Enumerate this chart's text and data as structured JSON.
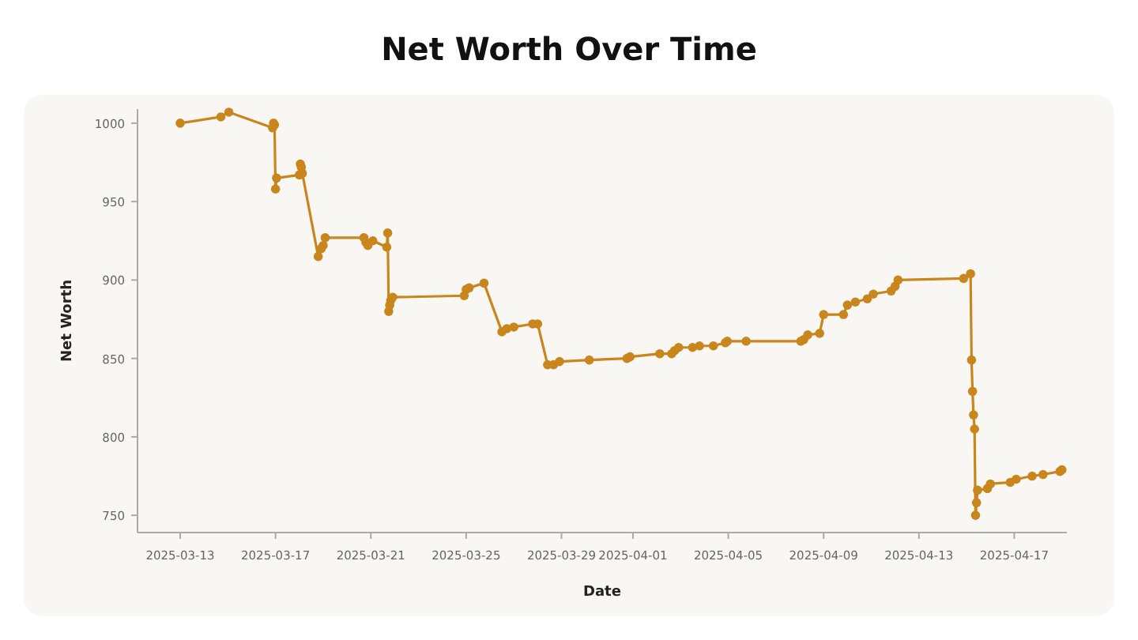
{
  "chart_data": {
    "type": "line",
    "title": "Net Worth Over Time",
    "xlabel": "Date",
    "ylabel": "Net Worth",
    "marker": "circle",
    "grid": false,
    "line_style": "solid",
    "xlim": [
      "2025-03-11T05:00",
      "2025-04-19T05:00"
    ],
    "ylim": [
      739,
      1009
    ],
    "xticks": [
      "2025-03-13",
      "2025-03-17",
      "2025-03-21",
      "2025-03-25",
      "2025-03-29",
      "2025-04-01",
      "2025-04-05",
      "2025-04-09",
      "2025-04-13",
      "2025-04-17"
    ],
    "yticks": [
      750,
      800,
      850,
      900,
      950,
      1000
    ],
    "series": [
      {
        "color": "#c8861c",
        "x": [
          "2025-03-13T00:00",
          "2025-03-14T17:00",
          "2025-03-15T01:00",
          "2025-03-16T21:00",
          "2025-03-16T22:00",
          "2025-03-16T23:00",
          "2025-03-17T00:00",
          "2025-03-17T01:00",
          "2025-03-18T00:00",
          "2025-03-18T01:00",
          "2025-03-18T02:00",
          "2025-03-18T03:00",
          "2025-03-18T19:00",
          "2025-03-18T22:00",
          "2025-03-19T00:00",
          "2025-03-19T02:00",
          "2025-03-20T17:00",
          "2025-03-20T19:00",
          "2025-03-20T21:00",
          "2025-03-21T02:00",
          "2025-03-21T16:00",
          "2025-03-21T17:00",
          "2025-03-21T18:00",
          "2025-03-21T19:00",
          "2025-03-21T20:00",
          "2025-03-21T22:00",
          "2025-03-24T22:00",
          "2025-03-25T00:00",
          "2025-03-25T03:00",
          "2025-03-25T18:00",
          "2025-03-26T12:00",
          "2025-03-26T17:00",
          "2025-03-27T00:00",
          "2025-03-27T19:00",
          "2025-03-28T00:00",
          "2025-03-28T10:00",
          "2025-03-28T16:00",
          "2025-03-28T22:00",
          "2025-03-30T04:00",
          "2025-03-31T18:00",
          "2025-03-31T21:00",
          "2025-04-02T03:00",
          "2025-04-02T15:00",
          "2025-04-02T18:00",
          "2025-04-02T22:00",
          "2025-04-03T12:00",
          "2025-04-03T19:00",
          "2025-04-04T09:00",
          "2025-04-04T21:00",
          "2025-04-04T23:00",
          "2025-04-05T18:00",
          "2025-04-08T01:00",
          "2025-04-08T04:00",
          "2025-04-08T08:00",
          "2025-04-08T20:00",
          "2025-04-09T00:00",
          "2025-04-09T20:00",
          "2025-04-10T00:00",
          "2025-04-10T08:00",
          "2025-04-10T20:00",
          "2025-04-11T02:00",
          "2025-04-11T20:00",
          "2025-04-12T00:00",
          "2025-04-12T03:00",
          "2025-04-14T21:00",
          "2025-04-15T04:00",
          "2025-04-15T05:00",
          "2025-04-15T06:00",
          "2025-04-15T07:00",
          "2025-04-15T08:00",
          "2025-04-15T09:00",
          "2025-04-15T10:00",
          "2025-04-15T11:00",
          "2025-04-15T21:00",
          "2025-04-16T00:00",
          "2025-04-16T20:00",
          "2025-04-17T02:00",
          "2025-04-17T18:00",
          "2025-04-18T05:00",
          "2025-04-18T22:00",
          "2025-04-19T00:00"
        ],
        "values": [
          1000,
          1004,
          1007,
          997,
          1000,
          999,
          958,
          965,
          967,
          974,
          972,
          968,
          915,
          920,
          922,
          927,
          927,
          924,
          922,
          925,
          921,
          930,
          880,
          884,
          887,
          889,
          890,
          894,
          895,
          898,
          867,
          869,
          870,
          872,
          872,
          846,
          846,
          848,
          849,
          850,
          851,
          853,
          853,
          855,
          857,
          857,
          858,
          858,
          860,
          861,
          861,
          861,
          862,
          865,
          866,
          878,
          878,
          884,
          886,
          888,
          891,
          893,
          896,
          900,
          901,
          904,
          849,
          829,
          814,
          805,
          750,
          758,
          766,
          767,
          770,
          771,
          773,
          775,
          776,
          778,
          779
        ]
      }
    ]
  }
}
